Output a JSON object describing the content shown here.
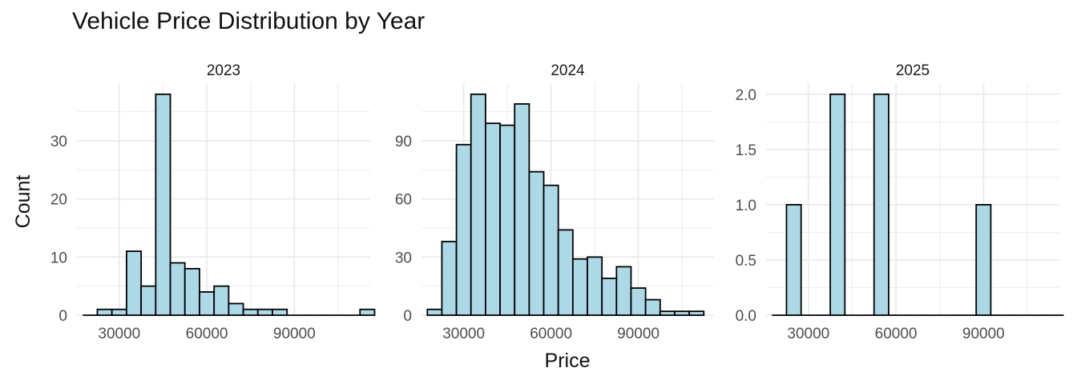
{
  "chart_data": {
    "type": "bar",
    "subtype": "faceted-histogram",
    "title": "Vehicle Price Distribution by Year",
    "xlabel": "Price",
    "ylabel": "Count",
    "grid": true,
    "bin_width": 5000,
    "x_breaks": [
      30000,
      60000,
      90000
    ],
    "x_tick_labels": [
      "30000",
      "60000",
      "90000"
    ],
    "colors": {
      "fill": "#add8e6",
      "outline": "#000000",
      "grid": "#ebebeb"
    },
    "facets": [
      {
        "label": "2023",
        "y_breaks": [
          0,
          10,
          20,
          30
        ],
        "y_tick_labels": [
          "0",
          "10",
          "20",
          "30"
        ],
        "ylim": [
          0,
          39.9
        ],
        "bins_start": 17500,
        "counts": [
          0,
          1,
          1,
          11,
          5,
          38,
          9,
          8,
          4,
          5,
          2,
          1,
          1,
          1,
          0,
          0,
          0,
          0,
          0,
          1
        ]
      },
      {
        "label": "2024",
        "y_breaks": [
          0,
          30,
          60,
          90
        ],
        "y_tick_labels": [
          "0",
          "30",
          "60",
          "90"
        ],
        "ylim": [
          0,
          119.7
        ],
        "bins_start": 17500,
        "counts": [
          3,
          38,
          88,
          114,
          99,
          98,
          109,
          74,
          67,
          44,
          29,
          30,
          19,
          25,
          14,
          8,
          2,
          2,
          2
        ]
      },
      {
        "label": "2025",
        "y_breaks": [
          0,
          0.5,
          1.0,
          1.5,
          2.0
        ],
        "y_tick_labels": [
          "0.0",
          "0.5",
          "1.0",
          "1.5",
          "2.0"
        ],
        "ylim": [
          0,
          2.1
        ],
        "bins_start": 17500,
        "counts": [
          0,
          1,
          0,
          0,
          2,
          0,
          0,
          2,
          0,
          0,
          0,
          0,
          0,
          0,
          1,
          0,
          0,
          0,
          0,
          0
        ]
      }
    ]
  }
}
